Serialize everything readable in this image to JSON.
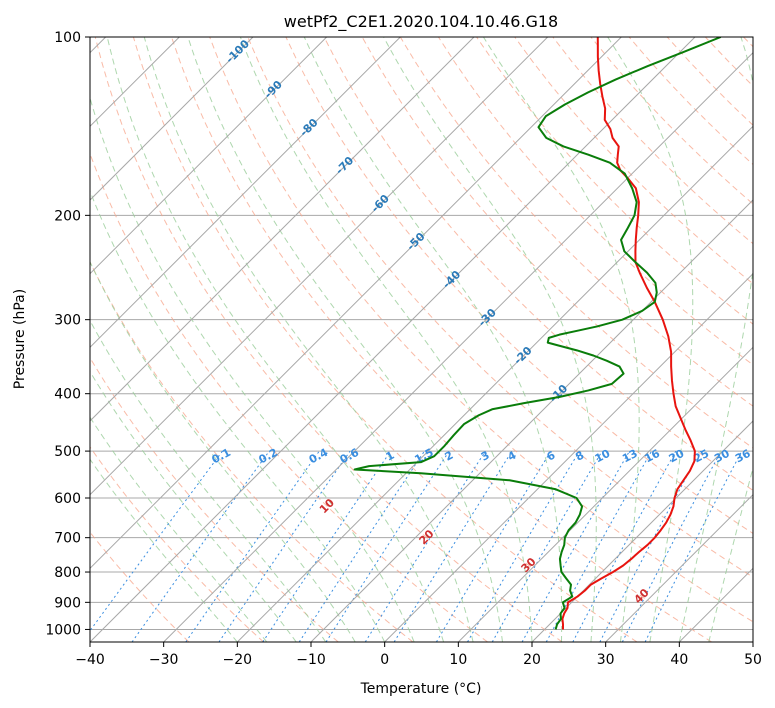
{
  "chart_data": {
    "type": "line",
    "title": "wetPf2_C2E1.2020.104.10.46.G18",
    "xlabel": "Temperature (°C)",
    "ylabel": "Pressure (hPa)",
    "xlim": [
      -40,
      50
    ],
    "ylim": [
      1050,
      100
    ],
    "y_scale": "log",
    "grid": true,
    "x_ticks": [
      "−40",
      "−30",
      "−20",
      "−10",
      "0",
      "10",
      "20",
      "30",
      "40",
      "50"
    ],
    "x_tick_values": [
      -40,
      -30,
      -20,
      -10,
      0,
      10,
      20,
      30,
      40,
      50
    ],
    "y_ticks": [
      "100",
      "200",
      "300",
      "400",
      "500",
      "600",
      "700",
      "800",
      "900",
      "1000"
    ],
    "y_tick_values": [
      100,
      200,
      300,
      400,
      500,
      600,
      700,
      800,
      900,
      1000
    ],
    "colors": {
      "temperature": "#e8140f",
      "dewpoint": "#0a7d0a",
      "isotherm": "#a8a8a8",
      "dry_adiabat": "#f7a48a",
      "moist_adiabat": "#9acd9a",
      "mixing_ratio": "#3a8ee0",
      "isotherm_label": "#2a7ab8",
      "dry_label": "#d03030",
      "mix_label": "#3a8ee0",
      "parcel": "#d9c2a2"
    },
    "series": [
      {
        "kind": "temperature",
        "points": [
          [
            22.5,
            1000
          ],
          [
            21.8,
            980
          ],
          [
            21.0,
            960
          ],
          [
            20.5,
            940
          ],
          [
            20.2,
            920
          ],
          [
            19.5,
            900
          ],
          [
            20.0,
            880
          ],
          [
            20.2,
            860
          ],
          [
            20.2,
            840
          ],
          [
            20.8,
            820
          ],
          [
            21.5,
            800
          ],
          [
            22.0,
            780
          ],
          [
            22.2,
            760
          ],
          [
            22.3,
            740
          ],
          [
            22.5,
            720
          ],
          [
            22.5,
            700
          ],
          [
            22.3,
            680
          ],
          [
            22.0,
            660
          ],
          [
            21.5,
            640
          ],
          [
            20.8,
            620
          ],
          [
            19.8,
            600
          ],
          [
            19.0,
            580
          ],
          [
            18.6,
            560
          ],
          [
            18.2,
            540
          ],
          [
            17.5,
            520
          ],
          [
            16.2,
            500
          ],
          [
            14.2,
            480
          ],
          [
            12.0,
            460
          ],
          [
            9.8,
            440
          ],
          [
            7.5,
            420
          ],
          [
            5.5,
            400
          ],
          [
            3.5,
            380
          ],
          [
            1.5,
            360
          ],
          [
            -0.5,
            340
          ],
          [
            -3.0,
            320
          ],
          [
            -6.0,
            300
          ],
          [
            -9.5,
            280
          ],
          [
            -12.5,
            265
          ],
          [
            -15.5,
            250
          ],
          [
            -17.5,
            240
          ],
          [
            -19.0,
            230
          ],
          [
            -20.5,
            220
          ],
          [
            -22.0,
            210
          ],
          [
            -23.5,
            200
          ],
          [
            -25.2,
            190
          ],
          [
            -27.5,
            180
          ],
          [
            -30.0,
            173
          ],
          [
            -32.0,
            168
          ],
          [
            -33.5,
            163
          ],
          [
            -34.5,
            158
          ],
          [
            -35.5,
            153
          ],
          [
            -37.5,
            148
          ],
          [
            -39.0,
            143
          ],
          [
            -41.0,
            138
          ],
          [
            -42.5,
            132
          ],
          [
            -44.5,
            126
          ],
          [
            -46.5,
            120
          ],
          [
            -48.5,
            114
          ],
          [
            -50.5,
            108
          ],
          [
            -52.5,
            102
          ],
          [
            -53.2,
            100
          ]
        ]
      },
      {
        "kind": "dewpoint",
        "points": [
          [
            21.5,
            1000
          ],
          [
            21.0,
            980
          ],
          [
            20.8,
            960
          ],
          [
            20.0,
            940
          ],
          [
            19.8,
            920
          ],
          [
            18.8,
            900
          ],
          [
            19.3,
            880
          ],
          [
            18.2,
            860
          ],
          [
            17.5,
            840
          ],
          [
            16.0,
            820
          ],
          [
            14.5,
            800
          ],
          [
            13.5,
            780
          ],
          [
            12.5,
            760
          ],
          [
            11.8,
            740
          ],
          [
            11.2,
            720
          ],
          [
            10.3,
            700
          ],
          [
            9.8,
            680
          ],
          [
            9.7,
            660
          ],
          [
            9.2,
            640
          ],
          [
            8.4,
            620
          ],
          [
            6.5,
            600
          ],
          [
            2.5,
            580
          ],
          [
            -5.0,
            560
          ],
          [
            -18.0,
            545
          ],
          [
            -27.5,
            537
          ],
          [
            -26.0,
            530
          ],
          [
            -19.5,
            522
          ],
          [
            -18.5,
            510
          ],
          [
            -18.5,
            490
          ],
          [
            -18.7,
            470
          ],
          [
            -18.8,
            450
          ],
          [
            -18.0,
            435
          ],
          [
            -17.0,
            425
          ],
          [
            -13.5,
            415
          ],
          [
            -9.5,
            405
          ],
          [
            -6.5,
            395
          ],
          [
            -4.2,
            385
          ],
          [
            -4.0,
            370
          ],
          [
            -5.5,
            360
          ],
          [
            -8.0,
            352
          ],
          [
            -10.5,
            345
          ],
          [
            -13.5,
            338
          ],
          [
            -16.5,
            332
          ],
          [
            -18.5,
            328
          ],
          [
            -19.0,
            322
          ],
          [
            -18.0,
            318
          ],
          [
            -16.0,
            313
          ],
          [
            -14.0,
            308
          ],
          [
            -11.5,
            300
          ],
          [
            -10.0,
            290
          ],
          [
            -9.5,
            280
          ],
          [
            -10.5,
            270
          ],
          [
            -12.0,
            260
          ],
          [
            -14.5,
            250
          ],
          [
            -17.5,
            240
          ],
          [
            -20.5,
            230
          ],
          [
            -22.5,
            220
          ],
          [
            -23.2,
            210
          ],
          [
            -24.0,
            200
          ],
          [
            -25.5,
            190
          ],
          [
            -28.0,
            180
          ],
          [
            -31.0,
            170
          ],
          [
            -34.5,
            163
          ],
          [
            -38.5,
            158
          ],
          [
            -43.0,
            153
          ],
          [
            -46.5,
            148
          ],
          [
            -49.0,
            142
          ],
          [
            -49.5,
            136
          ],
          [
            -48.5,
            130
          ],
          [
            -47.0,
            124
          ],
          [
            -45.0,
            118
          ],
          [
            -42.5,
            112
          ],
          [
            -39.5,
            106
          ],
          [
            -36.5,
            100
          ]
        ]
      }
    ],
    "isotherm_labels": [
      "-100",
      "-90",
      "-80",
      "-70",
      "-60",
      "-50",
      "-40",
      "-30",
      "-20",
      "-10"
    ],
    "dry_adiabat_labels": [
      "10",
      "20",
      "30",
      "40"
    ],
    "mixing_ratio_labels": [
      "0.1",
      "0.2",
      "0.4",
      "0.6",
      "1",
      "1.5",
      "2",
      "3",
      "4",
      "6",
      "8",
      "10",
      "13",
      "16",
      "20",
      "25",
      "30",
      "36"
    ]
  }
}
